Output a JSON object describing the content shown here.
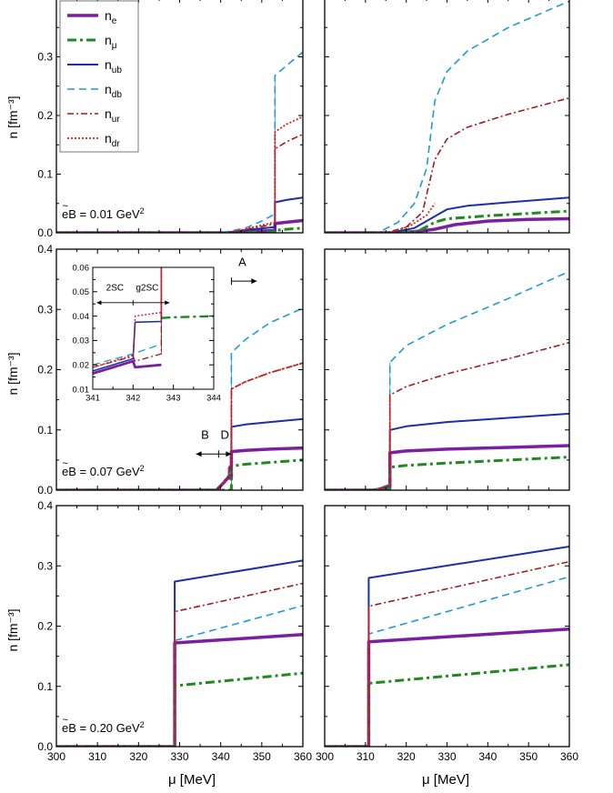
{
  "figure": {
    "xlabel": "μ [MeV]",
    "ylabel": "n [fm⁻³]"
  },
  "legend": [
    {
      "key": "e",
      "label_main": "n",
      "label_sub": "e",
      "color": "#7b1fa2",
      "dash": "",
      "width": 3.5
    },
    {
      "key": "mu",
      "label_main": "n",
      "label_sub": "μ",
      "color": "#1f8a1f",
      "dash": "10,4,3,4",
      "width": 3
    },
    {
      "key": "ub",
      "label_main": "n",
      "label_sub": "ub",
      "color": "#1a2fa8",
      "dash": "",
      "width": 2
    },
    {
      "key": "db",
      "label_main": "n",
      "label_sub": "db",
      "color": "#1e9ad6",
      "dash": "8,5",
      "width": 1.6
    },
    {
      "key": "ur",
      "label_main": "n",
      "label_sub": "ur",
      "color": "#a01a1a",
      "dash": "7,3,2,3",
      "width": 1.6
    },
    {
      "key": "dr",
      "label_main": "n",
      "label_sub": "dr",
      "color": "#e01b1b",
      "dash": "2,2",
      "width": 1.8
    }
  ],
  "chart_data": [
    {
      "id": "left-top",
      "type": "line",
      "annotation": "eB = 0.01 GeV²",
      "xlim": [
        300,
        360
      ],
      "ylim": [
        0,
        0.4
      ],
      "xticks": [],
      "yticks": [
        "0.0",
        "0.1",
        "0.2",
        "0.3"
      ],
      "series": [
        {
          "key": "e",
          "x": [
            300,
            341,
            350,
            353.2,
            353.2,
            356,
            360
          ],
          "y": [
            0,
            0,
            0.003,
            0.004,
            0.016,
            0.018,
            0.021
          ]
        },
        {
          "key": "mu",
          "x": [
            300,
            343,
            353.2,
            353.2,
            356,
            360
          ],
          "y": [
            0,
            0,
            0.002,
            0.004,
            0.006,
            0.008
          ]
        },
        {
          "key": "ub",
          "x": [
            300,
            341,
            348,
            353.2,
            353.2,
            356,
            360
          ],
          "y": [
            0,
            0,
            0.006,
            0.01,
            0.052,
            0.056,
            0.06
          ]
        },
        {
          "key": "db",
          "x": [
            300,
            340,
            346,
            350,
            353.2,
            353.2,
            356,
            360
          ],
          "y": [
            0,
            0,
            0.008,
            0.02,
            0.032,
            0.268,
            0.285,
            0.308
          ]
        },
        {
          "key": "ur",
          "x": [
            300,
            342,
            348,
            353.2,
            353.2,
            356,
            360
          ],
          "y": [
            0,
            0,
            0.008,
            0.015,
            0.143,
            0.155,
            0.168
          ]
        },
        {
          "key": "dr",
          "x": [
            300,
            342,
            348,
            353.2,
            353.2,
            356,
            360
          ],
          "y": [
            0,
            0,
            0.01,
            0.018,
            0.172,
            0.185,
            0.198
          ]
        }
      ]
    },
    {
      "id": "right-top",
      "type": "line",
      "annotation": "",
      "xlim": [
        300,
        360
      ],
      "ylim": [
        0,
        0.4
      ],
      "xticks": [],
      "yticks": [],
      "series": [
        {
          "key": "e",
          "x": [
            300,
            317,
            322,
            327,
            332,
            340,
            350,
            360
          ],
          "y": [
            0,
            0,
            0.002,
            0.006,
            0.014,
            0.02,
            0.023,
            0.024
          ]
        },
        {
          "key": "mu",
          "x": [
            300,
            318,
            323,
            327,
            330,
            340,
            350,
            360
          ],
          "y": [
            0,
            0,
            0.003,
            0.018,
            0.024,
            0.029,
            0.033,
            0.037
          ]
        },
        {
          "key": "ub",
          "x": [
            300,
            316,
            322,
            327,
            330,
            335,
            345,
            360
          ],
          "y": [
            0,
            0,
            0.008,
            0.028,
            0.04,
            0.046,
            0.052,
            0.06
          ]
        },
        {
          "key": "db",
          "x": [
            300,
            313,
            318,
            322,
            325,
            327,
            330,
            335,
            345,
            360
          ],
          "y": [
            0,
            0,
            0.018,
            0.05,
            0.11,
            0.225,
            0.275,
            0.31,
            0.35,
            0.395
          ]
        },
        {
          "key": "ur",
          "x": [
            300,
            315,
            320,
            324,
            327,
            330,
            335,
            345,
            360
          ],
          "y": [
            0,
            0,
            0.01,
            0.035,
            0.125,
            0.16,
            0.18,
            0.202,
            0.23
          ]
        },
        {
          "key": "dr",
          "x": [
            300,
            316,
            321,
            325,
            327
          ],
          "y": [
            0,
            0,
            0.012,
            0.03,
            0.05
          ]
        }
      ]
    },
    {
      "id": "left-mid",
      "type": "line",
      "annotation": "eB = 0.07 GeV²",
      "xlim": [
        300,
        360
      ],
      "ylim": [
        0,
        0.4
      ],
      "xticks": [],
      "yticks": [
        "0.0",
        "0.1",
        "0.2",
        "0.3",
        "0.4"
      ],
      "marks": {
        "A": "A",
        "B": "B",
        "D": "D"
      },
      "series": [
        {
          "key": "e",
          "x": [
            300,
            339,
            342,
            342,
            342.6,
            342.6,
            346,
            352,
            360
          ],
          "y": [
            0,
            0,
            0.022,
            0.02,
            0.02,
            0.064,
            0.066,
            0.068,
            0.07
          ]
        },
        {
          "key": "mu",
          "x": [
            300,
            342.6,
            342.6,
            346,
            352,
            360
          ],
          "y": [
            0,
            0,
            0.04,
            0.043,
            0.046,
            0.05
          ]
        },
        {
          "key": "ub",
          "x": [
            300,
            339,
            342,
            342,
            342.6,
            342.6,
            346,
            352,
            360
          ],
          "y": [
            0,
            0,
            0.024,
            0.037,
            0.037,
            0.105,
            0.109,
            0.113,
            0.118
          ]
        },
        {
          "key": "db",
          "x": [
            300,
            339,
            342,
            342.6,
            342.6,
            346,
            352,
            360
          ],
          "y": [
            0,
            0,
            0.026,
            0.029,
            0.228,
            0.25,
            0.278,
            0.302
          ]
        },
        {
          "key": "ur",
          "x": [
            300,
            339,
            342,
            342,
            342.6,
            342.6,
            346,
            352,
            360
          ],
          "y": [
            0,
            0,
            0.023,
            0.025,
            0.025,
            0.168,
            0.18,
            0.195,
            0.211
          ]
        },
        {
          "key": "dr",
          "x": [
            300,
            339,
            342,
            342,
            342.6,
            342.6,
            346,
            352,
            360
          ],
          "y": [
            0,
            0,
            0.023,
            0.04,
            0.04,
            0.168,
            0.18,
            0.195,
            0.211
          ]
        }
      ]
    },
    {
      "id": "left-mid-inset",
      "type": "line",
      "annotation": "",
      "xlim": [
        341,
        344
      ],
      "ylim": [
        0.01,
        0.06
      ],
      "xticks": [
        "341",
        "342",
        "343",
        "344"
      ],
      "yticks": [
        "0.01",
        "0.02",
        "0.03",
        "0.04",
        "0.05",
        "0.06"
      ],
      "labels": {
        "left": "2SC",
        "right": "g2SC"
      },
      "series": [
        {
          "key": "e",
          "x": [
            341,
            342,
            342.05,
            342.7
          ],
          "y": [
            0.0165,
            0.0215,
            0.019,
            0.02
          ]
        },
        {
          "key": "mu",
          "x": [
            342.7,
            343,
            344
          ],
          "y": [
            0.0392,
            0.0395,
            0.04
          ]
        },
        {
          "key": "ub",
          "x": [
            341,
            342,
            342.05,
            342.7,
            342.7
          ],
          "y": [
            0.0175,
            0.0225,
            0.0375,
            0.0378,
            0.06
          ]
        },
        {
          "key": "db",
          "x": [
            341,
            342,
            342.7,
            342.7
          ],
          "y": [
            0.02,
            0.0245,
            0.0285,
            0.06
          ]
        },
        {
          "key": "ur",
          "x": [
            341,
            342,
            342.05,
            342.7,
            342.7
          ],
          "y": [
            0.019,
            0.0235,
            0.0215,
            0.0245,
            0.06
          ]
        },
        {
          "key": "dr",
          "x": [
            341,
            342,
            342.05,
            342.7,
            342.7
          ],
          "y": [
            0.019,
            0.024,
            0.04,
            0.0415,
            0.06
          ]
        }
      ]
    },
    {
      "id": "right-mid",
      "type": "line",
      "annotation": "",
      "xlim": [
        300,
        360
      ],
      "ylim": [
        0,
        0.4
      ],
      "xticks": [],
      "yticks": [],
      "series": [
        {
          "key": "e",
          "x": [
            300,
            312,
            316,
            316,
            320,
            330,
            345,
            360
          ],
          "y": [
            0,
            0,
            0.005,
            0.062,
            0.065,
            0.068,
            0.071,
            0.074
          ]
        },
        {
          "key": "mu",
          "x": [
            300,
            314,
            316,
            316,
            320,
            330,
            345,
            360
          ],
          "y": [
            0,
            0,
            0.002,
            0.038,
            0.041,
            0.045,
            0.05,
            0.055
          ]
        },
        {
          "key": "ub",
          "x": [
            300,
            312,
            316,
            316,
            320,
            330,
            345,
            360
          ],
          "y": [
            0,
            0,
            0.008,
            0.1,
            0.106,
            0.113,
            0.12,
            0.127
          ]
        },
        {
          "key": "db",
          "x": [
            300,
            312,
            316,
            316,
            320,
            330,
            345,
            360
          ],
          "y": [
            0,
            0,
            0.01,
            0.212,
            0.24,
            0.275,
            0.318,
            0.363
          ]
        },
        {
          "key": "ur",
          "x": [
            300,
            312,
            316,
            316,
            320,
            330,
            345,
            360
          ],
          "y": [
            0,
            0,
            0.008,
            0.158,
            0.172,
            0.193,
            0.218,
            0.245
          ]
        },
        {
          "key": "dr",
          "x": [
            300,
            312,
            316,
            316
          ],
          "y": [
            0,
            0,
            0.008,
            0.158
          ]
        }
      ]
    },
    {
      "id": "left-bottom",
      "type": "line",
      "annotation": "eB = 0.20 GeV²",
      "xlim": [
        300,
        360
      ],
      "ylim": [
        0,
        0.4
      ],
      "xticks": [
        "300",
        "310",
        "320",
        "330",
        "340",
        "350",
        "360"
      ],
      "yticks": [
        "0.0",
        "0.1",
        "0.2",
        "0.3",
        "0.4"
      ],
      "series": [
        {
          "key": "e",
          "x": [
            300,
            328.8,
            328.8,
            360
          ],
          "y": [
            0,
            0,
            0.172,
            0.186
          ]
        },
        {
          "key": "mu",
          "x": [
            300,
            328.8,
            328.8,
            360
          ],
          "y": [
            0,
            0,
            0.101,
            0.122
          ]
        },
        {
          "key": "ub",
          "x": [
            300,
            328.8,
            328.8,
            360
          ],
          "y": [
            0,
            0,
            0.274,
            0.309
          ]
        },
        {
          "key": "db",
          "x": [
            300,
            328.8,
            328.8,
            360
          ],
          "y": [
            0,
            0,
            0.176,
            0.234
          ]
        },
        {
          "key": "ur",
          "x": [
            300,
            328.8,
            328.8,
            360
          ],
          "y": [
            0,
            0,
            0.224,
            0.271
          ]
        },
        {
          "key": "dr",
          "x": [
            300,
            328.8,
            328.8
          ],
          "y": [
            0,
            0,
            0.224
          ]
        }
      ]
    },
    {
      "id": "right-bottom",
      "type": "line",
      "annotation": "",
      "xlim": [
        300,
        360
      ],
      "ylim": [
        0,
        0.4
      ],
      "xticks": [
        "300",
        "310",
        "320",
        "330",
        "340",
        "350",
        "360"
      ],
      "yticks": [],
      "series": [
        {
          "key": "e",
          "x": [
            300,
            310.8,
            310.8,
            360
          ],
          "y": [
            0,
            0,
            0.174,
            0.195
          ]
        },
        {
          "key": "mu",
          "x": [
            300,
            310.8,
            310.8,
            360
          ],
          "y": [
            0,
            0,
            0.105,
            0.136
          ]
        },
        {
          "key": "ub",
          "x": [
            300,
            310.8,
            310.8,
            360
          ],
          "y": [
            0,
            0,
            0.28,
            0.332
          ]
        },
        {
          "key": "db",
          "x": [
            300,
            310.8,
            310.8,
            360
          ],
          "y": [
            0,
            0,
            0.187,
            0.282
          ]
        },
        {
          "key": "ur",
          "x": [
            300,
            310.8,
            310.8,
            360
          ],
          "y": [
            0,
            0,
            0.233,
            0.307
          ]
        },
        {
          "key": "dr",
          "x": [
            300,
            310.8,
            310.8
          ],
          "y": [
            0,
            0,
            0.233
          ]
        }
      ]
    }
  ]
}
